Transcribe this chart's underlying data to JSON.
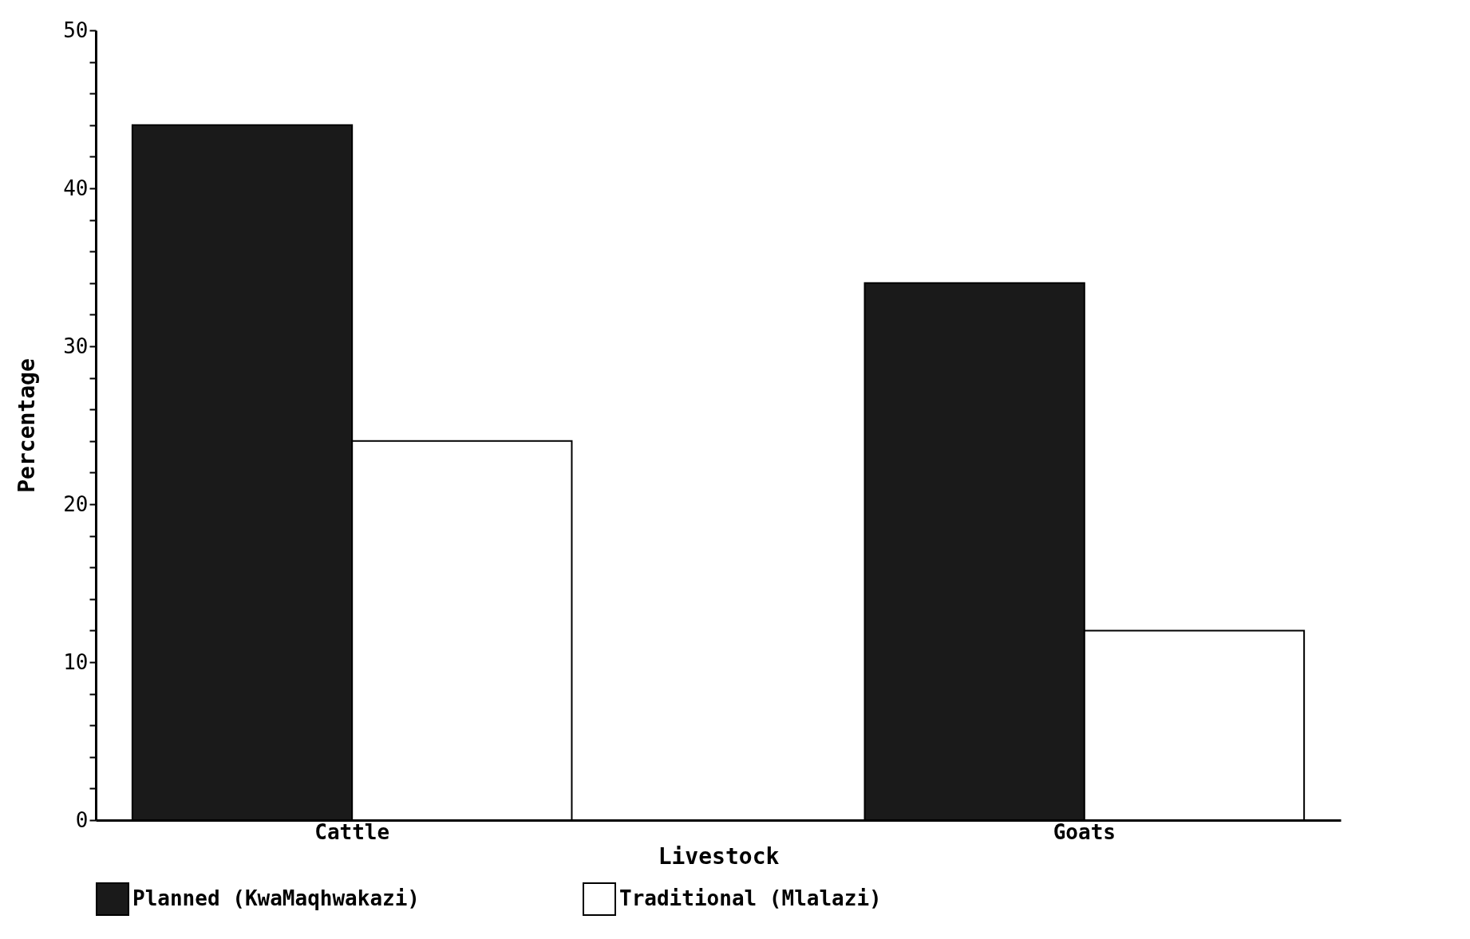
{
  "chart_data": {
    "type": "bar",
    "xlabel": "Livestock",
    "ylabel": "Percentage",
    "categories": [
      "Cattle",
      "Goats"
    ],
    "series": [
      {
        "name": "Planned (KwaMaqhwakazi)",
        "color": "#1a1a1a",
        "values": [
          44,
          34
        ]
      },
      {
        "name": "Traditional (Mlalazi)",
        "color": "#ffffff",
        "values": [
          24,
          12
        ]
      }
    ],
    "ylim": [
      0,
      50
    ],
    "yticks": [
      0,
      {
        "value": 2,
        "label": null
      },
      {
        "value": 4,
        "label": null
      },
      {
        "value": 6,
        "label": null
      },
      {
        "value": 8,
        "label": null
      },
      10,
      {
        "value": 12,
        "label": null
      },
      {
        "value": 14,
        "label": null
      },
      {
        "value": 16,
        "label": null
      },
      {
        "value": 18,
        "label": null
      },
      20,
      {
        "value": 22,
        "label": null
      },
      {
        "value": 24,
        "label": null
      },
      {
        "value": 26,
        "label": null
      },
      {
        "value": 28,
        "label": null
      },
      30,
      {
        "value": 32,
        "label": null
      },
      {
        "value": 34,
        "label": null
      },
      {
        "value": 36,
        "label": null
      },
      {
        "value": 38,
        "label": null
      },
      40,
      {
        "value": 42,
        "label": null
      },
      {
        "value": 44,
        "label": null
      },
      {
        "value": 46,
        "label": null
      },
      {
        "value": 48,
        "label": null
      },
      50
    ],
    "grid": false,
    "legend": "bottom"
  }
}
